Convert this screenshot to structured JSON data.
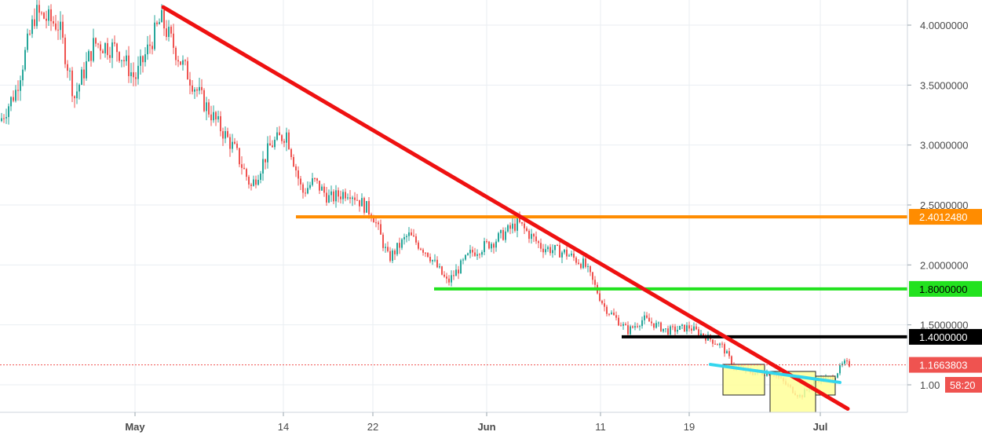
{
  "chart_data": {
    "type": "candlestick",
    "y_axis": {
      "ylim": [
        0.72,
        4.25
      ],
      "ticks": [
        {
          "value": 4.0,
          "label": "4.0000000"
        },
        {
          "value": 3.5,
          "label": "3.5000000"
        },
        {
          "value": 3.0,
          "label": "3.0000000"
        },
        {
          "value": 2.5,
          "label": "2.5000000"
        },
        {
          "value": 2.0,
          "label": "2.0000000"
        },
        {
          "value": 1.5,
          "label": "1.5000000"
        },
        {
          "value": 1.0,
          "label": "1.00"
        }
      ]
    },
    "x_axis": {
      "ticks": [
        "May",
        "14",
        "22",
        "Jun",
        "11",
        "19",
        "Jul"
      ]
    },
    "price_labels": {
      "current_price": "1.1663803",
      "timer": "58:20"
    },
    "levels": [
      {
        "label": "2.4012480",
        "value": 2.401248,
        "color": "#ff8c00"
      },
      {
        "label": "1.8000000",
        "value": 1.8,
        "color": "#22e21f"
      },
      {
        "label": "1.4000000",
        "value": 1.4,
        "color": "#000000"
      }
    ],
    "current_price": 1.1663803,
    "trendlines": [
      {
        "color": "#ee1111",
        "from": 4.15,
        "to": 0.8
      },
      {
        "color": "#33d6ee",
        "from": 1.17,
        "to": 1.02
      }
    ],
    "colors": {
      "up": "#26a69a",
      "down": "#ef5350",
      "grid": "#eaeef2",
      "box_fill": "#ffff99"
    }
  }
}
